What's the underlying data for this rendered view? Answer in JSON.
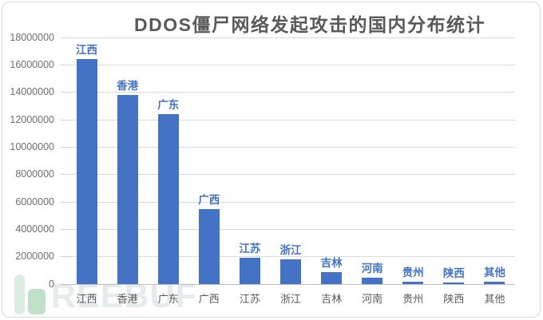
{
  "chart_data": {
    "type": "bar",
    "title": "DDOS僵尸网络发起攻击的国内分布统计",
    "categories": [
      "江西",
      "香港",
      "广东",
      "广西",
      "江苏",
      "浙江",
      "吉林",
      "河南",
      "贵州",
      "陕西",
      "其他"
    ],
    "values": [
      16400000,
      13800000,
      12400000,
      5500000,
      1900000,
      1800000,
      900000,
      450000,
      150000,
      100000,
      150000
    ],
    "bar_top_labels": [
      "江西",
      "香港",
      "广东",
      "广西",
      "江苏",
      "浙江",
      "吉林",
      "河南",
      "贵州",
      "陕西",
      "其他"
    ],
    "xlabel": "",
    "ylabel": "",
    "ylim": [
      0,
      18000000
    ],
    "ytick_step": 2000000,
    "yticklabels": [
      "0",
      "2000000",
      "4000000",
      "6000000",
      "8000000",
      "10000000",
      "12000000",
      "14000000",
      "16000000",
      "18000000"
    ],
    "grid": true,
    "legend": "none"
  },
  "style": {
    "bar_color": "#4472C4",
    "bar_top_label_color": "#4472C4",
    "title_color": "#595959",
    "axis_text_color": "#6e6e6e",
    "gridline_color": "#D9D9D9",
    "axis_line_color": "#BFBFBF",
    "chart_border_color": "#D9D9D9",
    "watermark_green_light": "#DCEEE2",
    "watermark_green_dark": "#BFE0CB"
  },
  "watermark": {
    "logo": "freebuf-f-logo",
    "text": "REEBUF"
  }
}
